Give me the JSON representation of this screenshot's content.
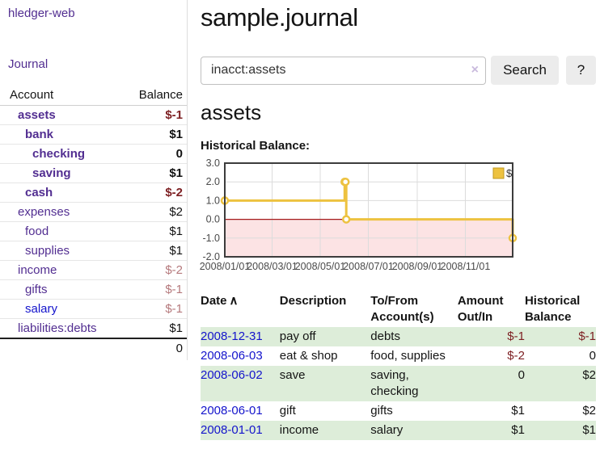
{
  "brand": {
    "label": "hledger-web"
  },
  "sidebar": {
    "journal_link": "Journal",
    "accounts": {
      "header_account": "Account",
      "header_balance": "Balance",
      "rows": [
        {
          "name": "assets",
          "balance": "$-1"
        },
        {
          "name": "bank",
          "balance": "$1"
        },
        {
          "name": "checking",
          "balance": "0"
        },
        {
          "name": "saving",
          "balance": "$1"
        },
        {
          "name": "cash",
          "balance": "$-2"
        },
        {
          "name": "expenses",
          "balance": "$2"
        },
        {
          "name": "food",
          "balance": "$1"
        },
        {
          "name": "supplies",
          "balance": "$1"
        },
        {
          "name": "income",
          "balance": "$-2"
        },
        {
          "name": "gifts",
          "balance": "$-1"
        },
        {
          "name": "salary",
          "balance": "$-1"
        },
        {
          "name": "liabilities:debts",
          "balance": "$1"
        }
      ],
      "total": "0"
    }
  },
  "header": {
    "title": "sample.journal"
  },
  "search": {
    "value": "inacct:assets",
    "clear_icon": "×",
    "search_button": "Search",
    "help_button": "?"
  },
  "account_view": {
    "heading": "assets",
    "chart_title": "Historical Balance:"
  },
  "chart_data": {
    "type": "line",
    "step": true,
    "series": [
      {
        "name": "$",
        "color": "#edc240",
        "points": [
          [
            "2008-01-01",
            1
          ],
          [
            "2008-06-01",
            2
          ],
          [
            "2008-06-02",
            2
          ],
          [
            "2008-06-03",
            0
          ],
          [
            "2008-12-31",
            -1
          ]
        ]
      }
    ],
    "x_ticks": [
      "2008/01/01",
      "2008/03/01",
      "2008/05/01",
      "2008/07/01",
      "2008/09/01",
      "2008/11/01"
    ],
    "y_ticks": [
      3.0,
      2.0,
      1.0,
      0.0,
      -1.0,
      -2.0
    ],
    "xlim": [
      "2008-01-01",
      "2008-12-31"
    ],
    "ylim": [
      -2,
      3
    ],
    "grid": true,
    "legend_position": "top-right",
    "negative_region_color": "#fce3e4",
    "zero_line_color": "#a61c1c",
    "grid_color": "#dcdcdc",
    "frame_color": "#3c3c3c"
  },
  "register": {
    "columns": {
      "date": "Date",
      "description": "Description",
      "accounts": "To/From Account(s)",
      "amount": "Amount Out/In",
      "balance": "Historical Balance"
    },
    "sort_indicator": "∧",
    "rows": [
      {
        "date": "2008-12-31",
        "description": "pay off",
        "accounts": "debts",
        "amount": "$-1",
        "balance": "$-1"
      },
      {
        "date": "2008-06-03",
        "description": "eat & shop",
        "accounts": "food, supplies",
        "amount": "$-2",
        "balance": "0"
      },
      {
        "date": "2008-06-02",
        "description": "save",
        "accounts": "saving, checking",
        "amount": "0",
        "balance": "$2"
      },
      {
        "date": "2008-06-01",
        "description": "gift",
        "accounts": "gifts",
        "amount": "$1",
        "balance": "$2"
      },
      {
        "date": "2008-01-01",
        "description": "income",
        "accounts": "salary",
        "amount": "$1",
        "balance": "$1"
      }
    ]
  },
  "colors": {
    "accent_purple": "#522e91",
    "link_blue": "#1414cc",
    "negative_strong": "#7d1f22",
    "negative_soft": "#b5797c",
    "row_stripe_green": "#ddedd9",
    "chart_line": "#edc240"
  }
}
